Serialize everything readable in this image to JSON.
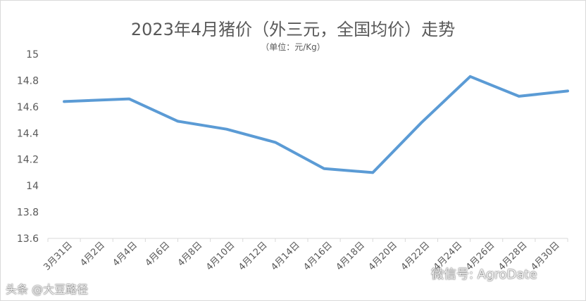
{
  "chart_data": {
    "type": "line",
    "title": "2023年4月猪价（外三元，全国均价）走势",
    "subtitle": "（单位：元/Kg）",
    "categories": [
      "3月31日",
      "4月2日",
      "4月4日",
      "4月6日",
      "4月8日",
      "4月10日",
      "4月12日",
      "4月14日",
      "4月16日",
      "4月18日",
      "4月20日",
      "4月22日",
      "4月24日",
      "4月26日",
      "4月28日",
      "4月30日"
    ],
    "x_tick_labels": [
      "3月31日",
      "4月2日",
      "4月4日",
      "4月6日",
      "4月8日",
      "4月10日",
      "4月12日",
      "4月14日",
      "4月16日",
      "4月18日",
      "4月20日",
      "4月22日",
      "4月24日",
      "4月26日",
      "4月28日",
      "4月30日"
    ],
    "points": [
      {
        "date": "3月31日",
        "value": 14.64
      },
      {
        "date": "4月4日",
        "value": 14.66
      },
      {
        "date": "4月7日",
        "value": 14.49
      },
      {
        "date": "4月10日",
        "value": 14.43
      },
      {
        "date": "4月13日",
        "value": 14.33
      },
      {
        "date": "4月16日",
        "value": 14.13
      },
      {
        "date": "4月19日",
        "value": 14.1
      },
      {
        "date": "4月22日",
        "value": 14.48
      },
      {
        "date": "4月25日",
        "value": 14.83
      },
      {
        "date": "4月28日",
        "value": 14.68
      },
      {
        "date": "5月1日",
        "value": 14.72
      }
    ],
    "y_ticks": [
      "15",
      "14.8",
      "14.6",
      "14.4",
      "14.2",
      "14",
      "13.8",
      "13.6"
    ],
    "ylim": [
      13.6,
      15
    ],
    "line_color": "#5b9bd5",
    "grid": false,
    "legend": "none"
  },
  "watermarks": {
    "left": "头条 @大豆路径",
    "right": "微信号: AgroDate"
  },
  "colors": {
    "axis": "#d9d9d9",
    "text": "#595959",
    "line": "#5b9bd5"
  }
}
